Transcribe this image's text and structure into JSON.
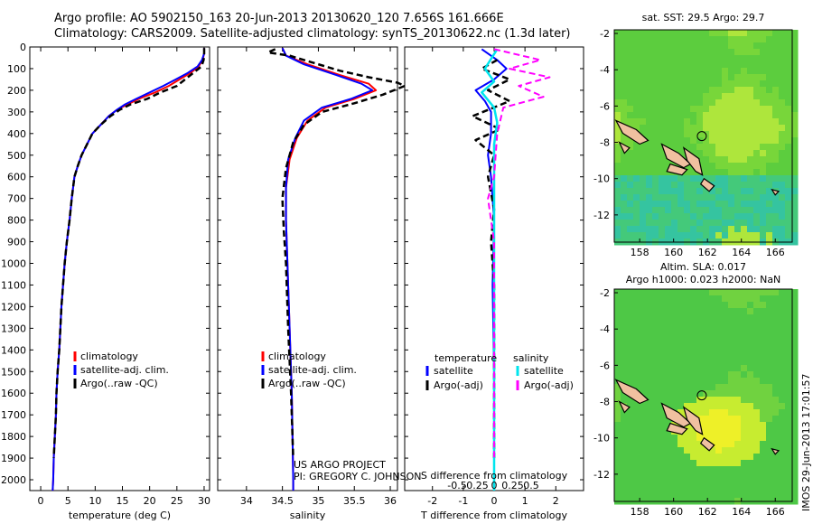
{
  "header": {
    "line1": "Argo profile: AO 5902150_163 20-Jun-2013 20130620_120 7.656S 161.666E",
    "line2": "Climatology: CARS2009. Satellite-adjusted climatology: synTS_20130622.nc (1.3d later)"
  },
  "footer_note": "IMOS 29-Jun-2013 17:01:57",
  "colors": {
    "clim": "#ff0000",
    "sat": "#0000ff",
    "argo": "#000000",
    "sal_sat": "#00e5ee",
    "sal_argo": "#ff00ff"
  },
  "chart_data": [
    {
      "type": "line",
      "xlabel": "temperature (deg C)",
      "xlim": [
        -2,
        31
      ],
      "ylim": [
        0,
        2050
      ],
      "xticks": [
        "0",
        "5",
        "10",
        "15",
        "20",
        "25",
        "30"
      ],
      "yticks": [
        "0",
        "100",
        "200",
        "300",
        "400",
        "500",
        "600",
        "700",
        "800",
        "900",
        "1000",
        "1100",
        "1200",
        "1300",
        "1400",
        "1500",
        "1600",
        "1700",
        "1800",
        "1900",
        "2000"
      ],
      "legend": [
        "climatology",
        "satellite-adj. clim.",
        "Argo(..raw -QC)"
      ],
      "series": [
        {
          "name": "climatology",
          "values": [
            [
              30,
              5
            ],
            [
              30,
              30
            ],
            [
              29.7,
              60
            ],
            [
              29,
              90
            ],
            [
              27.5,
              120
            ],
            [
              25.5,
              150
            ],
            [
              23.5,
              180
            ],
            [
              21,
              210
            ],
            [
              18,
              240
            ],
            [
              16,
              265
            ],
            [
              14,
              290
            ],
            [
              12.5,
              320
            ],
            [
              11,
              360
            ],
            [
              9.5,
              400
            ],
            [
              8.5,
              450
            ],
            [
              7.5,
              500
            ],
            [
              6.8,
              550
            ],
            [
              6.2,
              600
            ],
            [
              5.7,
              700
            ],
            [
              5.3,
              800
            ],
            [
              4.8,
              900
            ],
            [
              4.4,
              1000
            ],
            [
              4.1,
              1100
            ],
            [
              3.8,
              1200
            ],
            [
              3.6,
              1300
            ],
            [
              3.4,
              1400
            ],
            [
              3.1,
              1500
            ],
            [
              2.9,
              1600
            ],
            [
              2.8,
              1700
            ],
            [
              2.6,
              1800
            ],
            [
              2.4,
              1900
            ],
            [
              2.3,
              2000
            ],
            [
              2.2,
              2050
            ]
          ]
        },
        {
          "name": "satellite-adj. clim.",
          "values": [
            [
              30,
              5
            ],
            [
              30,
              30
            ],
            [
              29.6,
              60
            ],
            [
              28.8,
              90
            ],
            [
              27,
              120
            ],
            [
              24.8,
              150
            ],
            [
              22.5,
              180
            ],
            [
              20,
              210
            ],
            [
              17.5,
              240
            ],
            [
              15.5,
              265
            ],
            [
              14,
              290
            ],
            [
              12.5,
              320
            ],
            [
              11,
              360
            ],
            [
              9.5,
              400
            ],
            [
              8.5,
              450
            ],
            [
              7.5,
              500
            ],
            [
              6.8,
              550
            ],
            [
              6.2,
              600
            ],
            [
              5.7,
              700
            ],
            [
              5.3,
              800
            ],
            [
              4.8,
              900
            ],
            [
              4.4,
              1000
            ],
            [
              4.1,
              1100
            ],
            [
              3.8,
              1200
            ],
            [
              3.6,
              1300
            ],
            [
              3.4,
              1400
            ],
            [
              3.1,
              1500
            ],
            [
              2.9,
              1600
            ],
            [
              2.8,
              1700
            ],
            [
              2.6,
              1800
            ],
            [
              2.4,
              1900
            ],
            [
              2.3,
              2000
            ],
            [
              2.2,
              2050
            ]
          ]
        },
        {
          "name": "Argo(..raw -QC)",
          "values": [
            [
              30,
              5
            ],
            [
              30,
              30
            ],
            [
              29.9,
              60
            ],
            [
              29.5,
              90
            ],
            [
              28,
              120
            ],
            [
              26.5,
              150
            ],
            [
              25,
              180
            ],
            [
              22,
              210
            ],
            [
              19.5,
              240
            ],
            [
              16.5,
              265
            ],
            [
              14.5,
              290
            ],
            [
              12.8,
              320
            ],
            [
              11,
              360
            ],
            [
              9.5,
              400
            ],
            [
              8.5,
              450
            ],
            [
              7.5,
              500
            ],
            [
              6.8,
              550
            ],
            [
              6.2,
              600
            ],
            [
              5.7,
              700
            ],
            [
              5.3,
              800
            ],
            [
              4.8,
              900
            ],
            [
              4.4,
              1000
            ],
            [
              4.1,
              1100
            ],
            [
              3.8,
              1200
            ],
            [
              3.6,
              1300
            ],
            [
              3.4,
              1400
            ],
            [
              3.1,
              1500
            ],
            [
              2.9,
              1600
            ],
            [
              2.8,
              1700
            ],
            [
              2.6,
              1800
            ],
            [
              2.4,
              1900
            ]
          ]
        }
      ]
    },
    {
      "type": "line",
      "xlabel": "salinity",
      "xlim": [
        33.6,
        36.1
      ],
      "ylim": [
        0,
        2050
      ],
      "xticks": [
        "34",
        "34.5",
        "35",
        "35.5",
        "36"
      ],
      "legend": [
        "climatology",
        "satellite-adj. clim.",
        "Argo(..raw -QC)"
      ],
      "annotation": [
        "US ARGO PROJECT",
        "PI: GREGORY C. JOHNSON"
      ],
      "series": [
        {
          "name": "climatology",
          "values": [
            [
              34.5,
              5
            ],
            [
              34.55,
              40
            ],
            [
              34.85,
              80
            ],
            [
              35.3,
              130
            ],
            [
              35.7,
              170
            ],
            [
              35.8,
              200
            ],
            [
              35.5,
              240
            ],
            [
              35.1,
              280
            ],
            [
              34.85,
              340
            ],
            [
              34.7,
              420
            ],
            [
              34.6,
              520
            ],
            [
              34.55,
              650
            ],
            [
              34.55,
              800
            ],
            [
              34.57,
              1000
            ],
            [
              34.6,
              1300
            ],
            [
              34.63,
              1600
            ],
            [
              34.65,
              2000
            ],
            [
              34.65,
              2050
            ]
          ]
        },
        {
          "name": "satellite-adj. clim.",
          "values": [
            [
              34.5,
              5
            ],
            [
              34.55,
              40
            ],
            [
              34.8,
              80
            ],
            [
              35.25,
              130
            ],
            [
              35.6,
              170
            ],
            [
              35.75,
              200
            ],
            [
              35.45,
              240
            ],
            [
              35.05,
              280
            ],
            [
              34.8,
              340
            ],
            [
              34.68,
              420
            ],
            [
              34.58,
              520
            ],
            [
              34.55,
              650
            ],
            [
              34.55,
              800
            ],
            [
              34.57,
              1000
            ],
            [
              34.6,
              1300
            ],
            [
              34.63,
              1600
            ],
            [
              34.65,
              2000
            ],
            [
              34.65,
              2050
            ]
          ]
        },
        {
          "name": "Argo(..raw -QC)",
          "values": [
            [
              34.4,
              10
            ],
            [
              34.3,
              25
            ],
            [
              34.6,
              40
            ],
            [
              34.9,
              70
            ],
            [
              35.3,
              110
            ],
            [
              35.7,
              140
            ],
            [
              36.1,
              165
            ],
            [
              36.2,
              180
            ],
            [
              35.9,
              220
            ],
            [
              35.5,
              260
            ],
            [
              35.05,
              300
            ],
            [
              34.8,
              360
            ],
            [
              34.65,
              440
            ],
            [
              34.55,
              560
            ],
            [
              34.5,
              700
            ],
            [
              34.52,
              850
            ],
            [
              34.55,
              1000
            ],
            [
              34.58,
              1300
            ],
            [
              34.62,
              1600
            ],
            [
              34.65,
              1900
            ]
          ]
        }
      ]
    },
    {
      "type": "line",
      "xlabel": "T difference from climatology",
      "x2label": "S difference from climatology",
      "xlim": [
        -2.9,
        2.9
      ],
      "ylim": [
        0,
        2050
      ],
      "xticks": [
        "-2",
        "-1",
        "0",
        "1",
        "2"
      ],
      "x2ticks": [
        "-0.5",
        "-0.25",
        "0",
        "0.25",
        "0.5"
      ],
      "legend_temperature_title": "temperature",
      "legend_salinity_title": "salinity",
      "legend": [
        "satellite",
        "Argo(-adj)",
        "satellite",
        "Argo(-adj)"
      ],
      "series": [
        {
          "name": "temperature satellite",
          "values": [
            [
              -0.4,
              10
            ],
            [
              0.1,
              60
            ],
            [
              0.4,
              100
            ],
            [
              0,
              150
            ],
            [
              -0.6,
              200
            ],
            [
              -0.3,
              250
            ],
            [
              -0.1,
              300
            ],
            [
              -0.1,
              400
            ],
            [
              -0.2,
              500
            ],
            [
              -0.1,
              600
            ],
            [
              0,
              800
            ],
            [
              -0.05,
              1100
            ],
            [
              0,
              1500
            ],
            [
              0,
              1900
            ]
          ]
        },
        {
          "name": "temperature Argo(-adj)",
          "values": [
            [
              0.1,
              60
            ],
            [
              -0.4,
              100
            ],
            [
              0.5,
              150
            ],
            [
              -0.2,
              200
            ],
            [
              0.5,
              250
            ],
            [
              -0.7,
              320
            ],
            [
              0.2,
              380
            ],
            [
              -0.6,
              430
            ],
            [
              0,
              500
            ],
            [
              -0.2,
              600
            ],
            [
              0,
              750
            ],
            [
              -0.1,
              900
            ],
            [
              0,
              1100
            ],
            [
              0,
              1500
            ],
            [
              0,
              1900
            ]
          ]
        },
        {
          "name": "salinity satellite",
          "values": [
            [
              0.1,
              10
            ],
            [
              -0.3,
              100
            ],
            [
              0,
              160
            ],
            [
              -0.4,
              210
            ],
            [
              0,
              280
            ],
            [
              0.1,
              350
            ],
            [
              0,
              450
            ],
            [
              0,
              600
            ],
            [
              0,
              900
            ],
            [
              0,
              1200
            ],
            [
              0,
              1600
            ],
            [
              0,
              2000
            ],
            [
              0,
              2050
            ]
          ]
        },
        {
          "name": "salinity Argo(-adj)",
          "values": [
            [
              0,
              10
            ],
            [
              1.5,
              60
            ],
            [
              0.5,
              100
            ],
            [
              1.8,
              140
            ],
            [
              0.8,
              180
            ],
            [
              1.6,
              230
            ],
            [
              0.3,
              280
            ],
            [
              0.1,
              400
            ],
            [
              0,
              600
            ],
            [
              -0.2,
              700
            ],
            [
              0,
              900
            ],
            [
              0,
              1200
            ],
            [
              0,
              1600
            ],
            [
              0,
              1900
            ]
          ]
        }
      ]
    },
    {
      "type": "heatmap",
      "title": "sat. SST: 29.5 Argo: 29.7",
      "xlim": [
        156.5,
        167
      ],
      "ylim": [
        -13.5,
        -1.8
      ],
      "xticks": [
        "158",
        "160",
        "162",
        "164",
        "166"
      ],
      "yticks": [
        "-2",
        "-4",
        "-6",
        "-8",
        "-10",
        "-12"
      ],
      "marker": [
        161.666,
        -7.656
      ]
    },
    {
      "type": "heatmap",
      "title_line1": "Altim. SLA: 0.017",
      "title_line2": "Argo h1000: 0.023 h2000: NaN",
      "xlim": [
        156.5,
        167
      ],
      "ylim": [
        -13.5,
        -1.8
      ],
      "xticks": [
        "158",
        "160",
        "162",
        "164",
        "166"
      ],
      "yticks": [
        "-2",
        "-4",
        "-6",
        "-8",
        "-10",
        "-12"
      ],
      "marker": [
        161.666,
        -7.656
      ]
    }
  ]
}
